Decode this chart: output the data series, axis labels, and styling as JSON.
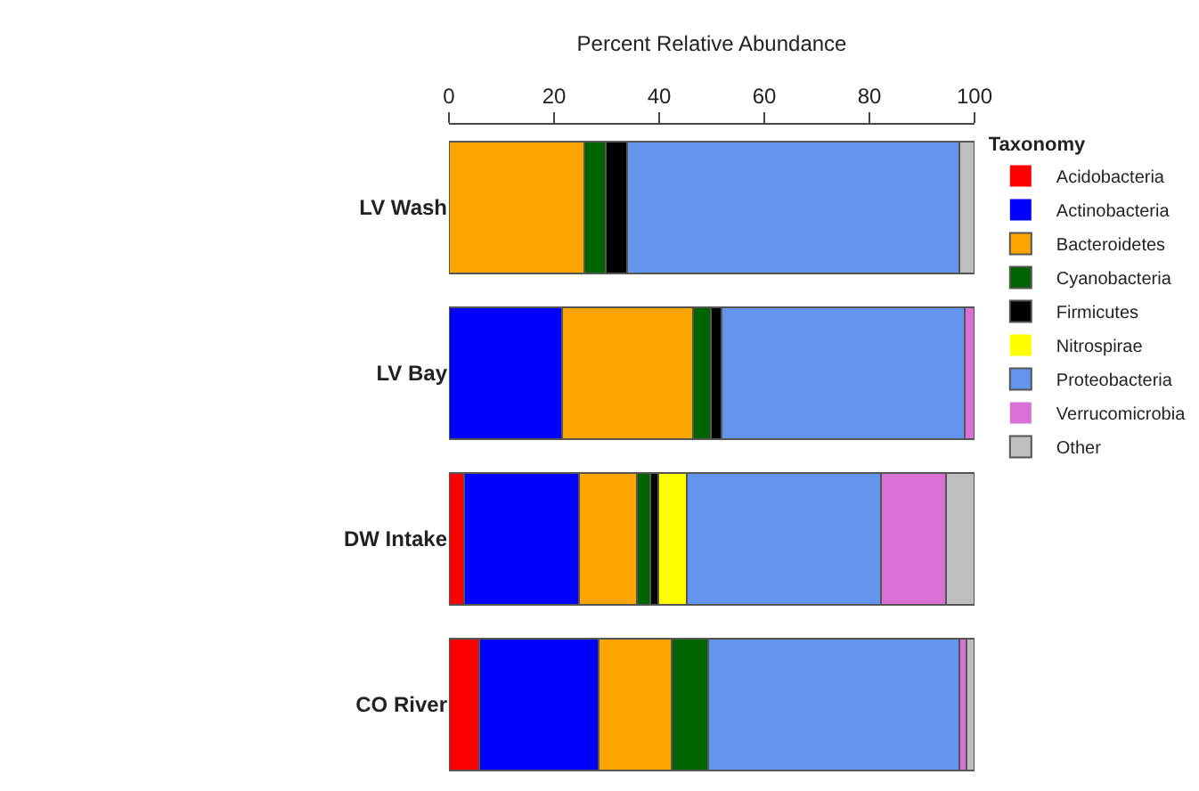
{
  "chart_data": {
    "type": "bar",
    "orientation": "horizontal",
    "stacked": true,
    "xlabel": "Percent Relative Abundance",
    "legend_title": "Taxonomy",
    "legend": "right",
    "categories": [
      "LV Wash",
      "LV Bay",
      "DW Intake",
      "CO River"
    ],
    "xlim": [
      0,
      100
    ],
    "xticks": [
      0,
      20,
      40,
      60,
      80,
      100
    ],
    "series": [
      {
        "name": "Acidobacteria",
        "color": "#ff0000",
        "values": [
          0,
          0,
          2.8,
          5.7
        ]
      },
      {
        "name": "Actinobacteria",
        "color": "#0000ff",
        "values": [
          0,
          21.6,
          22.0,
          22.7
        ]
      },
      {
        "name": "Bacteroidetes",
        "color": "#ffa500",
        "values": [
          25.7,
          24.9,
          10.9,
          13.9
        ]
      },
      {
        "name": "Cyanobacteria",
        "color": "#006400",
        "values": [
          4.1,
          3.4,
          2.6,
          7.1
        ]
      },
      {
        "name": "Firmicutes",
        "color": "#000000",
        "values": [
          4.1,
          2.0,
          1.6,
          0
        ]
      },
      {
        "name": "Nitrospirae",
        "color": "#ffff00",
        "values": [
          0,
          0,
          5.3,
          0
        ]
      },
      {
        "name": "Proteobacteria",
        "color": "#6495ed",
        "values": [
          63.3,
          46.3,
          37.0,
          47.7
        ]
      },
      {
        "name": "Verrucomicrobia",
        "color": "#da70d6",
        "values": [
          0,
          1.8,
          12.3,
          1.4
        ]
      },
      {
        "name": "Other",
        "color": "#bebebe",
        "values": [
          2.8,
          0,
          5.5,
          1.5
        ]
      }
    ]
  }
}
